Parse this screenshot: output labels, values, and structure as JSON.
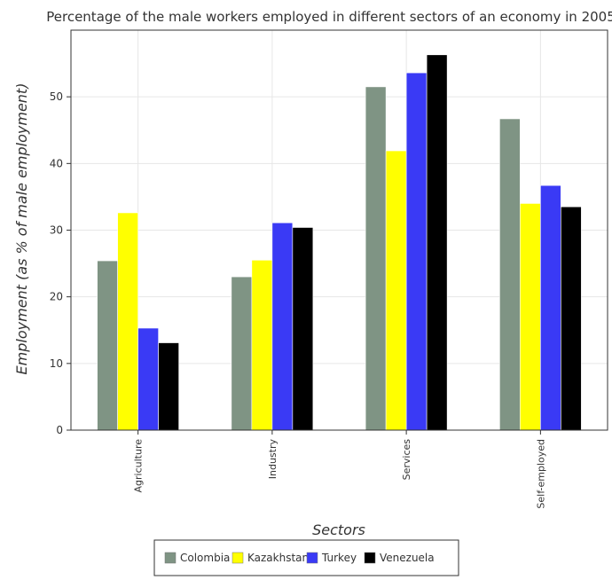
{
  "chart_data": {
    "type": "bar",
    "title": "Percentage of the male workers employed in different sectors of an economy in 2005",
    "xlabel": "Sectors",
    "ylabel": "Employment (as % of male employment)",
    "categories": [
      "Agriculture",
      "Industry",
      "Services",
      "Self-employed"
    ],
    "ylim": [
      0,
      60
    ],
    "yticks": [
      0,
      10,
      20,
      30,
      40,
      50
    ],
    "grid": true,
    "legend_position": "bottom-center",
    "series": [
      {
        "name": "Colombia",
        "color": "#7f9484",
        "values": [
          25.4,
          23.0,
          51.5,
          46.7
        ]
      },
      {
        "name": "Kazakhstan",
        "color": "#ffff00",
        "values": [
          32.6,
          25.5,
          41.9,
          34.0
        ]
      },
      {
        "name": "Turkey",
        "color": "#3a3af5",
        "values": [
          15.3,
          31.1,
          53.6,
          36.7
        ]
      },
      {
        "name": "Venezuela",
        "color": "#000000",
        "values": [
          13.1,
          30.4,
          56.3,
          33.5
        ]
      }
    ]
  }
}
